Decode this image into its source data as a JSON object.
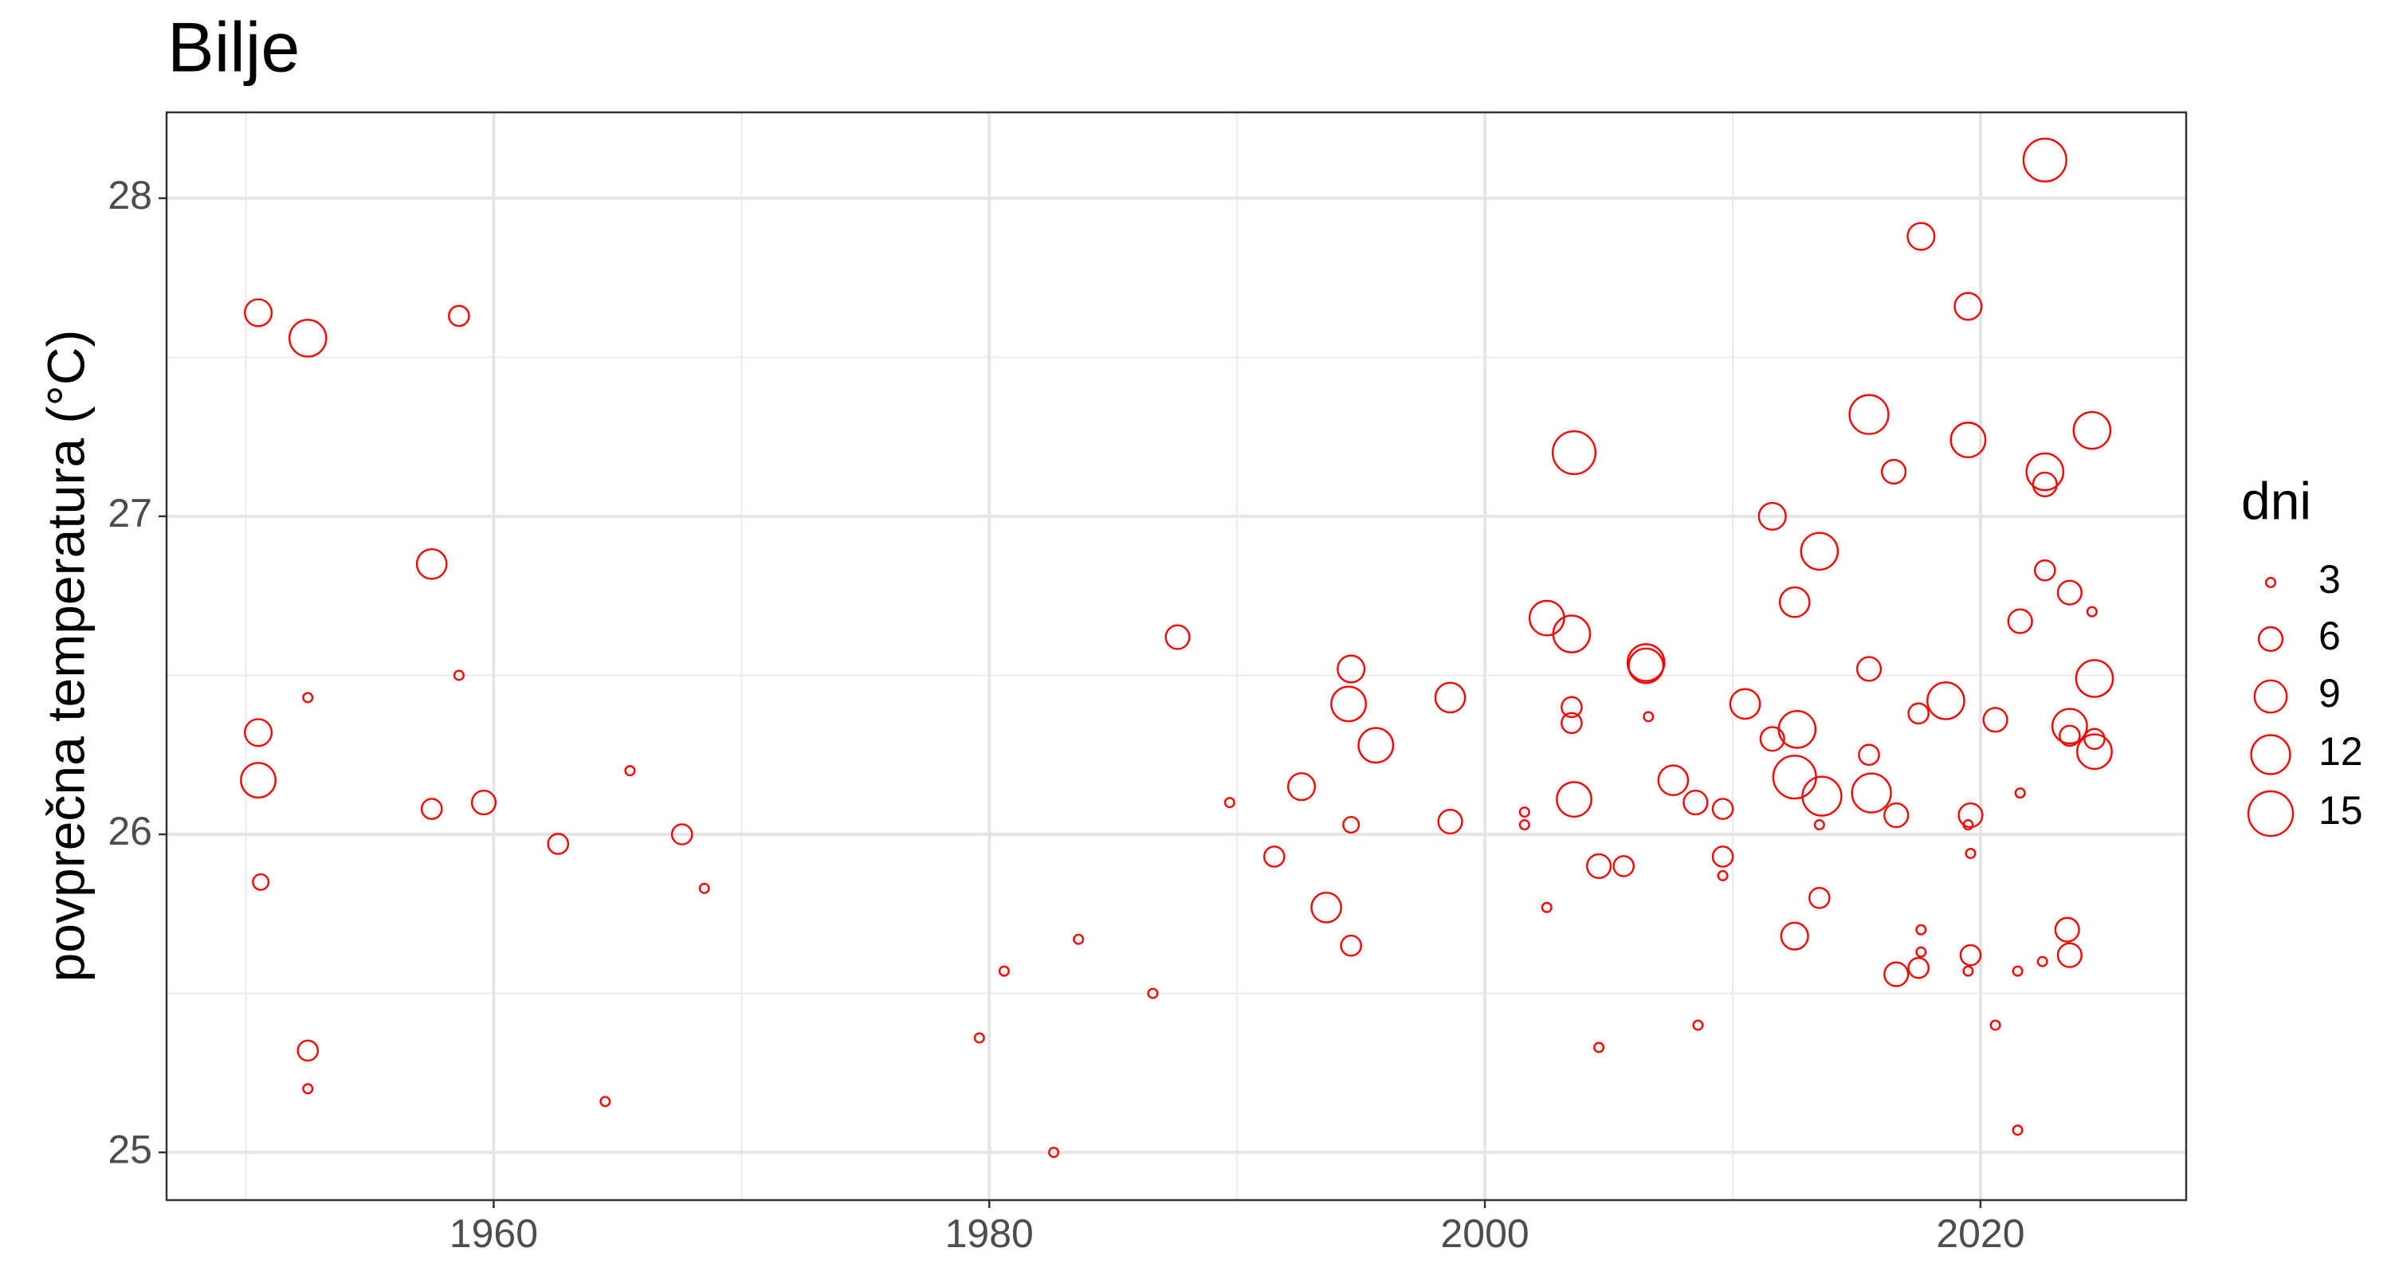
{
  "chart_data": {
    "type": "bubble",
    "title": "Bilje",
    "y_label": "povprečna temperatura (°C)",
    "color": "#ff0000",
    "xlim": [
      1946.8,
      2028.3
    ],
    "ylim": [
      24.85,
      28.27
    ],
    "xticks": [
      1960,
      1980,
      2000,
      2020
    ],
    "yticks": [
      25,
      26,
      27,
      28
    ],
    "x_minor_grid": [
      1950,
      1970,
      1990,
      2010
    ],
    "y_minor_grid": [
      25.5,
      26.5,
      27.5
    ],
    "grid": true,
    "legend": {
      "title": "dni",
      "sizes": [
        3,
        6,
        9,
        12,
        15
      ],
      "position": "right"
    },
    "x": [
      1950.5,
      1952.5,
      1958.6,
      1957.5,
      1952.5,
      1958.6,
      1950.5,
      1950.5,
      1957.5,
      1959.6,
      1965.5,
      1962.6,
      1967.6,
      1950.6,
      1968.5,
      1952.5,
      1952.5,
      1964.5,
      1979.6,
      1980.6,
      1983.6,
      1982.6,
      1986.6,
      1987.6,
      1989.7,
      1991.5,
      1992.6,
      1993.6,
      1994.6,
      1994.5,
      1994.6,
      1994.6,
      1995.6,
      1998.6,
      1998.6,
      2001.6,
      2001.6,
      2002.5,
      2002.5,
      2003.5,
      2003.6,
      2003.5,
      2003.5,
      2003.6,
      2004.6,
      2004.6,
      2005.6,
      2006.5,
      2006.5,
      2006.6,
      2007.6,
      2008.5,
      2008.6,
      2009.6,
      2009.6,
      2009.6,
      2010.5,
      2011.6,
      2011.6,
      2012.5,
      2012.6,
      2012.5,
      2012.5,
      2013.5,
      2013.6,
      2013.5,
      2013.5,
      2015.5,
      2015.5,
      2015.5,
      2015.6,
      2016.5,
      2016.6,
      2016.6,
      2017.6,
      2017.5,
      2017.6,
      2017.6,
      2017.5,
      2018.6,
      2019.5,
      2019.5,
      2019.6,
      2019.5,
      2019.6,
      2019.6,
      2019.5,
      2020.6,
      2020.6,
      2021.6,
      2021.6,
      2021.5,
      2021.5,
      2022.6,
      2022.6,
      2022.6,
      2022.6,
      2022.5,
      2023.6,
      2023.6,
      2023.6,
      2023.5,
      2023.6,
      2024.5,
      2024.5,
      2024.6,
      2024.6,
      2024.6
    ],
    "y": [
      27.64,
      27.56,
      27.63,
      26.85,
      26.43,
      26.5,
      26.32,
      26.17,
      26.08,
      26.1,
      26.2,
      25.97,
      26.0,
      25.85,
      25.83,
      25.32,
      25.2,
      25.16,
      25.36,
      25.57,
      25.67,
      25.0,
      25.5,
      26.62,
      26.1,
      25.93,
      26.15,
      25.77,
      26.52,
      26.41,
      26.03,
      25.65,
      26.28,
      26.43,
      26.04,
      26.07,
      26.03,
      25.77,
      26.68,
      26.63,
      27.2,
      26.4,
      26.35,
      26.11,
      25.9,
      25.33,
      25.9,
      26.54,
      26.53,
      26.37,
      26.17,
      26.1,
      25.4,
      26.08,
      25.93,
      25.87,
      26.41,
      27.0,
      26.3,
      26.73,
      26.33,
      26.18,
      25.68,
      26.89,
      26.12,
      26.03,
      25.8,
      27.32,
      26.52,
      26.25,
      26.13,
      27.14,
      26.06,
      25.56,
      27.88,
      26.38,
      25.7,
      25.63,
      25.58,
      26.42,
      27.66,
      27.24,
      26.06,
      26.03,
      25.94,
      25.62,
      25.57,
      26.36,
      25.4,
      26.67,
      26.13,
      25.57,
      25.07,
      28.12,
      27.14,
      27.1,
      26.83,
      25.6,
      26.76,
      26.34,
      26.31,
      25.7,
      25.62,
      27.27,
      26.7,
      26.49,
      26.3,
      26.26
    ],
    "size": [
      7,
      11,
      5,
      8,
      3,
      3,
      7,
      10,
      5,
      6,
      3,
      5,
      5,
      4,
      3,
      5,
      3,
      3,
      3,
      3,
      3,
      3,
      3,
      6,
      3,
      5,
      7,
      8,
      7,
      10,
      4,
      5,
      10,
      8,
      6,
      3,
      3,
      3,
      10,
      11,
      14,
      5,
      5,
      10,
      6,
      3,
      5,
      11,
      10,
      3,
      8,
      6,
      3,
      5,
      5,
      3,
      8,
      7,
      6,
      8,
      11,
      14,
      7,
      11,
      12,
      3,
      5,
      12,
      6,
      5,
      12,
      6,
      6,
      6,
      7,
      5,
      3,
      3,
      5,
      11,
      7,
      10,
      6,
      3,
      3,
      5,
      3,
      6,
      3,
      6,
      3,
      3,
      3,
      14,
      11,
      6,
      5,
      3,
      6,
      10,
      5,
      6,
      6,
      11,
      3,
      11,
      5,
      10
    ]
  }
}
